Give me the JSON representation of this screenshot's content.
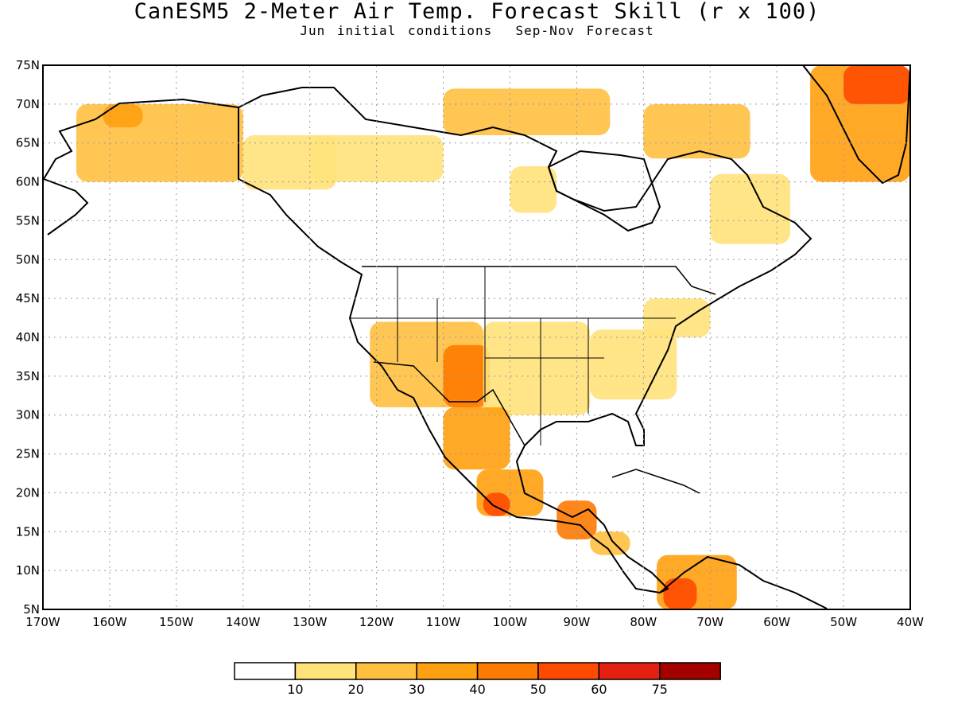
{
  "title": "CanESM5 2-Meter Air Temp. Forecast Skill (r x 100)",
  "subtitle": "Jun initial conditions  Sep-Nov Forecast",
  "map": {
    "lon_range": [
      -170,
      -40
    ],
    "lat_range": [
      5,
      75
    ],
    "grid": true,
    "lat_ticks": [
      "75N",
      "70N",
      "65N",
      "60N",
      "55N",
      "50N",
      "45N",
      "40N",
      "35N",
      "30N",
      "25N",
      "20N",
      "15N",
      "10N",
      "5N"
    ],
    "lon_ticks": [
      "170W",
      "160W",
      "150W",
      "140W",
      "130W",
      "120W",
      "110W",
      "100W",
      "90W",
      "80W",
      "70W",
      "60W",
      "50W",
      "40W"
    ]
  },
  "legend": {
    "labels": [
      "10",
      "20",
      "30",
      "40",
      "50",
      "60",
      "75"
    ],
    "colors": [
      "#ffffff",
      "#ffe27a",
      "#ffc040",
      "#ffa010",
      "#ff7a00",
      "#ff4a00",
      "#e62010",
      "#a30000"
    ]
  },
  "regions": [
    {
      "id": "alaska",
      "lon": [
        -165,
        -140
      ],
      "lat": [
        60,
        70
      ],
      "level": 2
    },
    {
      "id": "nw-alaska",
      "lon": [
        -161,
        -155
      ],
      "lat": [
        67,
        70
      ],
      "level": 3
    },
    {
      "id": "yukon",
      "lon": [
        -140,
        -126
      ],
      "lat": [
        59,
        66
      ],
      "level": 1
    },
    {
      "id": "canada-north",
      "lon": [
        -130,
        -110
      ],
      "lat": [
        60,
        66
      ],
      "level": 1
    },
    {
      "id": "arctic-islands",
      "lon": [
        -110,
        -85
      ],
      "lat": [
        66,
        72
      ],
      "level": 2
    },
    {
      "id": "hudson-west",
      "lon": [
        -100,
        -93
      ],
      "lat": [
        56,
        62
      ],
      "level": 1
    },
    {
      "id": "baffin",
      "lon": [
        -80,
        -64
      ],
      "lat": [
        63,
        70
      ],
      "level": 2
    },
    {
      "id": "labrador",
      "lon": [
        -70,
        -58
      ],
      "lat": [
        52,
        61
      ],
      "level": 1
    },
    {
      "id": "greenland",
      "lon": [
        -55,
        -40
      ],
      "lat": [
        60,
        75
      ],
      "level": 3
    },
    {
      "id": "greenland-north",
      "lon": [
        -50,
        -40
      ],
      "lat": [
        70,
        75
      ],
      "level": 5
    },
    {
      "id": "us-west",
      "lon": [
        -121,
        -104
      ],
      "lat": [
        31,
        42
      ],
      "level": 2
    },
    {
      "id": "four-corners",
      "lon": [
        -110,
        -103
      ],
      "lat": [
        31,
        39
      ],
      "level": 4
    },
    {
      "id": "us-central",
      "lon": [
        -104,
        -88
      ],
      "lat": [
        30,
        42
      ],
      "level": 1
    },
    {
      "id": "us-east",
      "lon": [
        -88,
        -75
      ],
      "lat": [
        32,
        41
      ],
      "level": 1
    },
    {
      "id": "new-england",
      "lon": [
        -80,
        -70
      ],
      "lat": [
        40,
        45
      ],
      "level": 1
    },
    {
      "id": "mexico-north",
      "lon": [
        -110,
        -100
      ],
      "lat": [
        23,
        31
      ],
      "level": 3
    },
    {
      "id": "mexico-south",
      "lon": [
        -105,
        -95
      ],
      "lat": [
        17,
        23
      ],
      "level": 3
    },
    {
      "id": "mexico-coast",
      "lon": [
        -104,
        -100
      ],
      "lat": [
        17,
        20
      ],
      "level": 5
    },
    {
      "id": "guatemala",
      "lon": [
        -93,
        -87
      ],
      "lat": [
        14,
        19
      ],
      "level": 4
    },
    {
      "id": "central-am",
      "lon": [
        -88,
        -82
      ],
      "lat": [
        12,
        15
      ],
      "level": 2
    },
    {
      "id": "colombia",
      "lon": [
        -78,
        -66
      ],
      "lat": [
        5,
        12
      ],
      "level": 3
    },
    {
      "id": "venezuela-west",
      "lon": [
        -77,
        -72
      ],
      "lat": [
        5,
        9
      ],
      "level": 5
    }
  ]
}
